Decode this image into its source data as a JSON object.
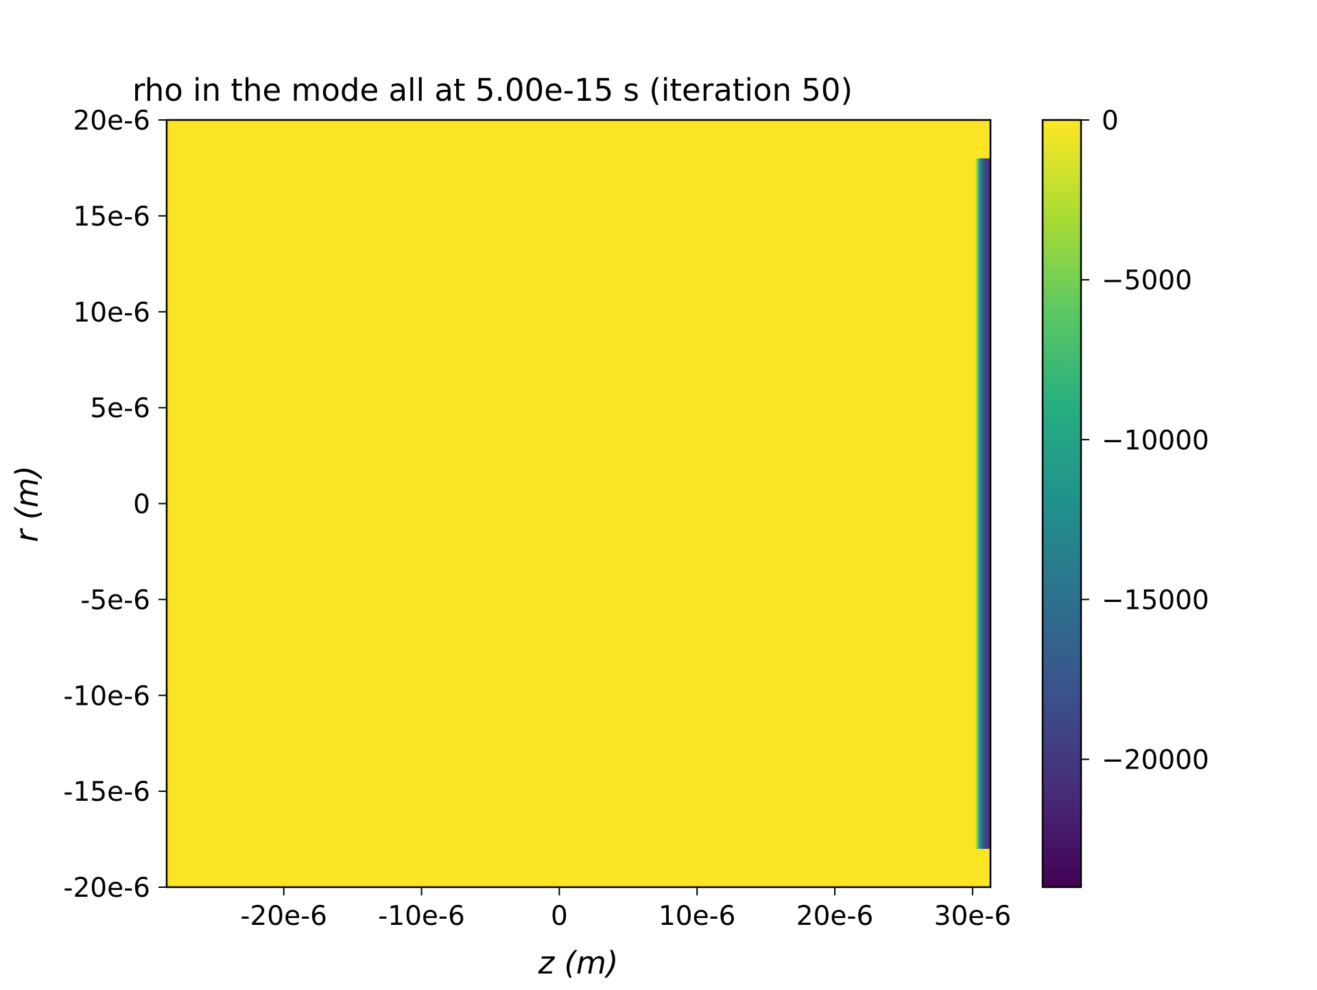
{
  "chart_data": {
    "type": "heatmap",
    "title": "rho in the mode all at 5.00e-15 s   (iteration 50)",
    "xlabel": "z (m)",
    "ylabel": "r (m)",
    "xlim": [
      -2.85e-05,
      3.13e-05
    ],
    "ylim": [
      -2e-05,
      2e-05
    ],
    "x_ticks": [
      {
        "value": -2e-05,
        "label": "-20e-6"
      },
      {
        "value": -1e-05,
        "label": "-10e-6"
      },
      {
        "value": 0,
        "label": "0"
      },
      {
        "value": 1e-05,
        "label": "10e-6"
      },
      {
        "value": 2e-05,
        "label": "20e-6"
      },
      {
        "value": 3e-05,
        "label": "30e-6"
      }
    ],
    "y_ticks": [
      {
        "value": 2e-05,
        "label": "20e-6"
      },
      {
        "value": 1.5e-05,
        "label": "15e-6"
      },
      {
        "value": 1e-05,
        "label": "10e-6"
      },
      {
        "value": 5e-06,
        "label": "5e-6"
      },
      {
        "value": 0,
        "label": "0"
      },
      {
        "value": -5e-06,
        "label": "-5e-6"
      },
      {
        "value": -1e-05,
        "label": "-10e-6"
      },
      {
        "value": -1.5e-05,
        "label": "-15e-6"
      },
      {
        "value": -2e-05,
        "label": "-20e-6"
      }
    ],
    "colormap": "viridis",
    "background_value": 0,
    "feature": {
      "description": "negative charge slab at right edge",
      "z_range": [
        3e-05,
        3.13e-05
      ],
      "r_range": [
        -1.8e-05,
        1.8e-05
      ],
      "min_value": -24000
    },
    "colorbar": {
      "vmin": -24000,
      "vmax": 0,
      "ticks": [
        {
          "value": 0,
          "label": "0"
        },
        {
          "value": -5000,
          "label": "−5000"
        },
        {
          "value": -10000,
          "label": "−10000"
        },
        {
          "value": -15000,
          "label": "−15000"
        },
        {
          "value": -20000,
          "label": "−20000"
        }
      ]
    },
    "grid": false,
    "legend": "none"
  },
  "colors": {
    "viridis_stops": [
      "#440154",
      "#472c7a",
      "#3b518b",
      "#2c718e",
      "#21918c",
      "#27ad81",
      "#5cc863",
      "#aadc32",
      "#fde725"
    ]
  }
}
